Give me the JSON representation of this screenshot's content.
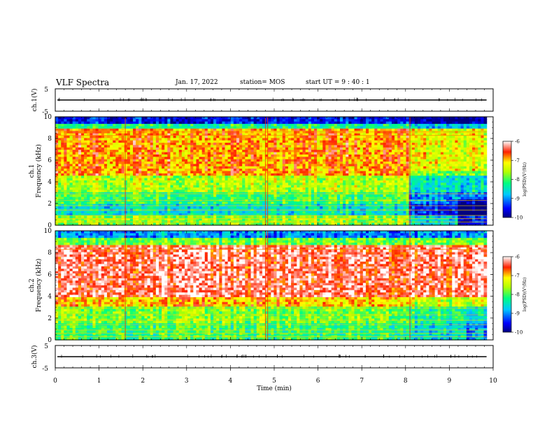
{
  "header": {
    "title": "VLF Spectra",
    "date": "Jan. 17, 2022",
    "station": "station= MOS",
    "start": "start UT =  9 : 40 : 1"
  },
  "chart_data": [
    {
      "type": "line",
      "panel": "ch1-waveform",
      "ylabel": "ch.1(V)",
      "ylim": [
        -5,
        5
      ],
      "yticks": [
        "5",
        "-5"
      ],
      "series": [
        {
          "values_description_free": true,
          "level": 0
        }
      ]
    },
    {
      "type": "heatmap",
      "panel": "ch1-spectrogram",
      "ylabel_lines": [
        "ch.1",
        "Frequency (kHz)"
      ],
      "ylim": [
        0,
        10
      ],
      "yticks": [
        "0",
        "2",
        "4",
        "6",
        "8",
        "10"
      ],
      "xlim": [
        0,
        10
      ],
      "data_end_min": 9.85,
      "colorbar": {
        "label": "log(PSD)(V²/Hz)",
        "range": [
          -10,
          -6
        ],
        "ticks": [
          "-6",
          "-7",
          "-8",
          "-9",
          "-10"
        ]
      }
    },
    {
      "type": "heatmap",
      "panel": "ch2-spectrogram",
      "ylabel_lines": [
        "ch.2",
        "Frequency (kHz)"
      ],
      "ylim": [
        0,
        10
      ],
      "yticks": [
        "0",
        "2",
        "4",
        "6",
        "8",
        "10"
      ],
      "xlim": [
        0,
        10
      ],
      "data_end_min": 9.85,
      "colorbar": {
        "label": "log(PSD)(V²/Hz)",
        "range": [
          -10,
          -6
        ],
        "ticks": [
          "-6",
          "-7",
          "-8",
          "-9",
          "-10"
        ]
      }
    },
    {
      "type": "line",
      "panel": "ch3-waveform",
      "ylabel": "ch.3(V)",
      "ylim": [
        -5,
        5
      ],
      "yticks": [
        "5",
        "-5"
      ],
      "series": [
        {
          "level": 0
        }
      ]
    }
  ],
  "xaxis": {
    "label": "Time (min)",
    "ticks": [
      "0",
      "1",
      "2",
      "3",
      "4",
      "5",
      "6",
      "7",
      "8",
      "9",
      "10"
    ]
  }
}
